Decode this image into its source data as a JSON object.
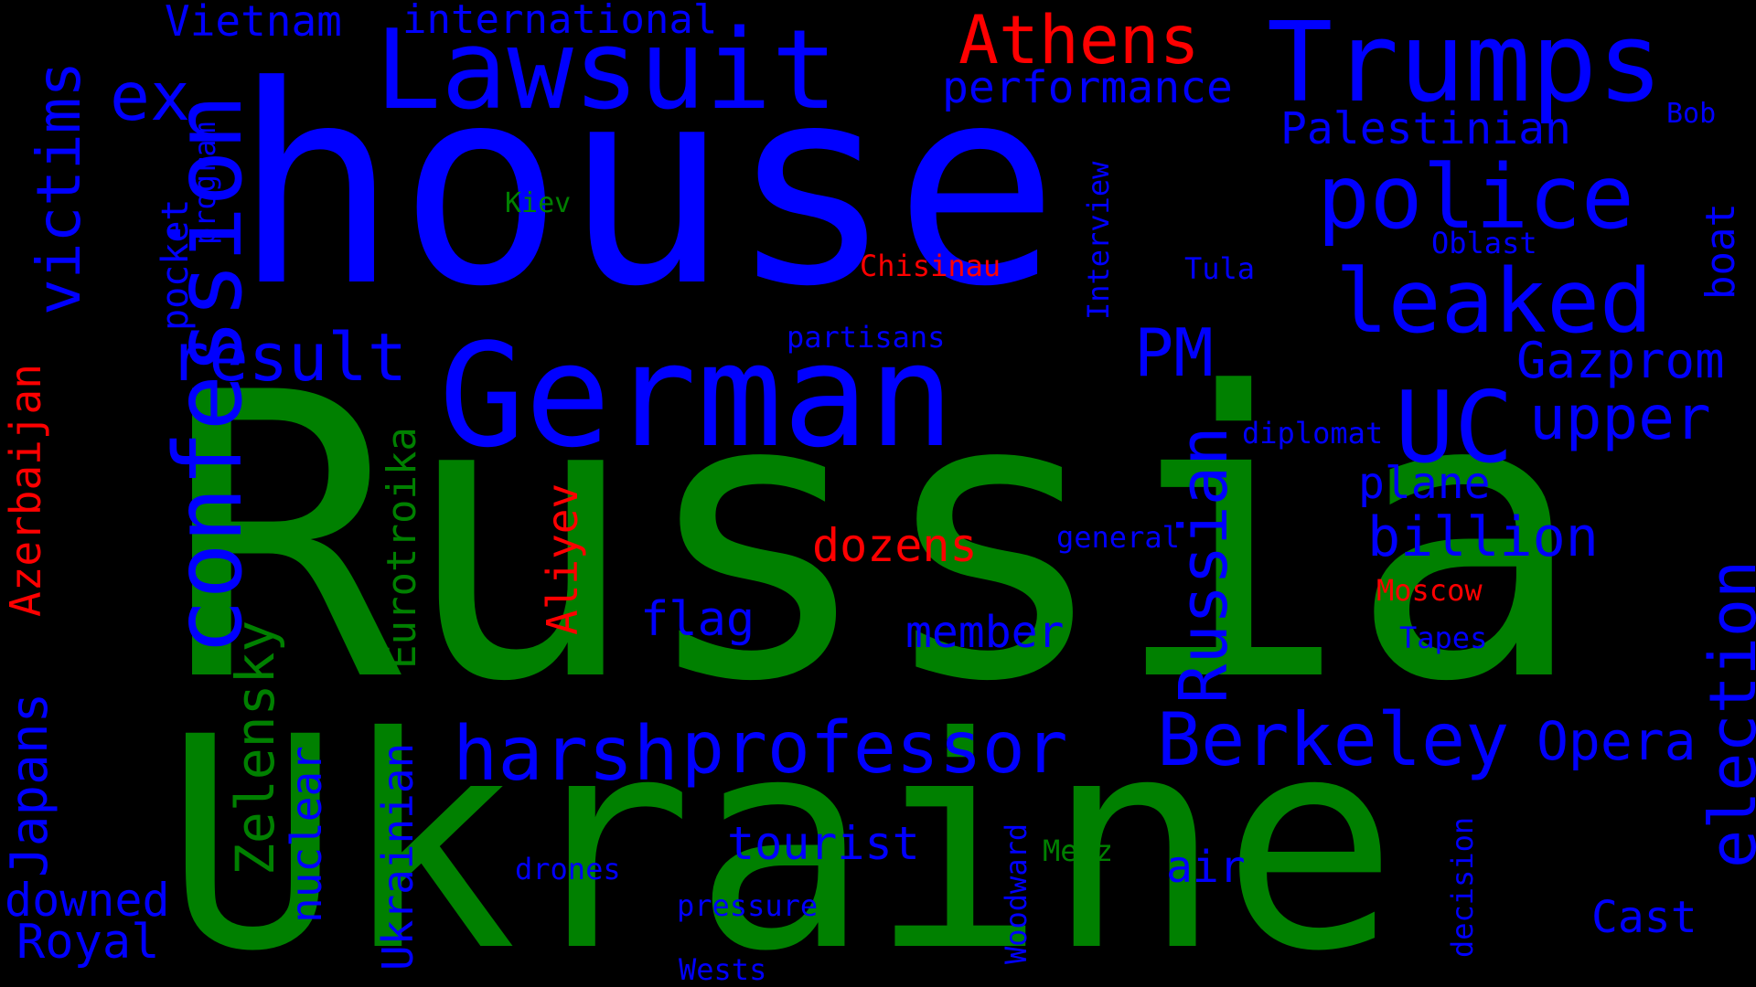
{
  "palette": {
    "background": "#000000",
    "blue": "#0000ff",
    "green": "#008000",
    "red": "#ff0000"
  },
  "words": [
    {
      "id": "house",
      "text": "house",
      "color": "blue"
    },
    {
      "id": "russia",
      "text": "Russia",
      "color": "green"
    },
    {
      "id": "ukraine",
      "text": "Ukraine",
      "color": "green"
    },
    {
      "id": "trumps",
      "text": "Trumps",
      "color": "blue"
    },
    {
      "id": "lawsuit",
      "text": "Lawsuit",
      "color": "blue"
    },
    {
      "id": "german",
      "text": "German",
      "color": "blue"
    },
    {
      "id": "athens",
      "text": "Athens",
      "color": "red"
    },
    {
      "id": "police",
      "text": "police",
      "color": "blue"
    },
    {
      "id": "leaked",
      "text": "leaked",
      "color": "blue"
    },
    {
      "id": "confession",
      "text": "confession",
      "color": "blue"
    },
    {
      "id": "victims",
      "text": "victims",
      "color": "blue"
    },
    {
      "id": "ex",
      "text": "ex",
      "color": "blue"
    },
    {
      "id": "result",
      "text": "result",
      "color": "blue"
    },
    {
      "id": "pm",
      "text": "PM",
      "color": "blue"
    },
    {
      "id": "uc",
      "text": "UC",
      "color": "blue"
    },
    {
      "id": "gazprom",
      "text": "Gazprom",
      "color": "blue"
    },
    {
      "id": "upper",
      "text": "upper",
      "color": "blue"
    },
    {
      "id": "russian",
      "text": "Russian",
      "color": "blue"
    },
    {
      "id": "berkeley",
      "text": "Berkeley",
      "color": "blue"
    },
    {
      "id": "professor",
      "text": "professor",
      "color": "blue"
    },
    {
      "id": "harsh",
      "text": "harsh",
      "color": "blue"
    },
    {
      "id": "opera",
      "text": "Opera",
      "color": "blue"
    },
    {
      "id": "election",
      "text": "election",
      "color": "blue"
    },
    {
      "id": "billion",
      "text": "billion",
      "color": "blue"
    },
    {
      "id": "plane",
      "text": "plane",
      "color": "blue"
    },
    {
      "id": "performance",
      "text": "performance",
      "color": "blue"
    },
    {
      "id": "palestinian",
      "text": "Palestinian",
      "color": "blue"
    },
    {
      "id": "vietnam",
      "text": "Vietnam",
      "color": "blue"
    },
    {
      "id": "international",
      "text": "international",
      "color": "blue"
    },
    {
      "id": "program",
      "text": "program",
      "color": "blue"
    },
    {
      "id": "pocket",
      "text": "pocket",
      "color": "blue"
    },
    {
      "id": "azerbaijan",
      "text": "Azerbaijan",
      "color": "red"
    },
    {
      "id": "japans",
      "text": "Japans",
      "color": "blue"
    },
    {
      "id": "downed",
      "text": "downed",
      "color": "blue"
    },
    {
      "id": "royal",
      "text": "Royal",
      "color": "blue"
    },
    {
      "id": "zelensky",
      "text": "Zelensky",
      "color": "green"
    },
    {
      "id": "nuclear",
      "text": "nuclear",
      "color": "blue"
    },
    {
      "id": "eurotroika",
      "text": "Eurotroika",
      "color": "green"
    },
    {
      "id": "ukrainian",
      "text": "Ukrainian",
      "color": "blue"
    },
    {
      "id": "aliyev",
      "text": "Aliyev",
      "color": "red"
    },
    {
      "id": "dozens",
      "text": "dozens",
      "color": "red"
    },
    {
      "id": "flag",
      "text": "flag",
      "color": "blue"
    },
    {
      "id": "member",
      "text": "member",
      "color": "blue"
    },
    {
      "id": "tourist",
      "text": "tourist",
      "color": "blue"
    },
    {
      "id": "air",
      "text": "air",
      "color": "blue"
    },
    {
      "id": "cast",
      "text": "Cast",
      "color": "blue"
    },
    {
      "id": "boat",
      "text": "boat",
      "color": "blue"
    },
    {
      "id": "bob",
      "text": "Bob",
      "color": "blue"
    },
    {
      "id": "kiev",
      "text": "Kiev",
      "color": "green"
    },
    {
      "id": "chisinau",
      "text": "Chisinau",
      "color": "red"
    },
    {
      "id": "interview",
      "text": "Interview",
      "color": "blue"
    },
    {
      "id": "oblast",
      "text": "Oblast",
      "color": "blue"
    },
    {
      "id": "tula",
      "text": "Tula",
      "color": "blue"
    },
    {
      "id": "partisans",
      "text": "partisans",
      "color": "blue"
    },
    {
      "id": "diplomat",
      "text": "diplomat",
      "color": "blue"
    },
    {
      "id": "general",
      "text": "general",
      "color": "blue"
    },
    {
      "id": "moscow",
      "text": "Moscow",
      "color": "red"
    },
    {
      "id": "tapes",
      "text": "Tapes",
      "color": "blue"
    },
    {
      "id": "merz",
      "text": "Merz",
      "color": "green"
    },
    {
      "id": "woodward",
      "text": "Woodward",
      "color": "blue"
    },
    {
      "id": "drones",
      "text": "drones",
      "color": "blue"
    },
    {
      "id": "pressure",
      "text": "pressure",
      "color": "blue"
    },
    {
      "id": "wests",
      "text": "Wests",
      "color": "blue"
    },
    {
      "id": "decision",
      "text": "decision",
      "color": "blue"
    }
  ]
}
